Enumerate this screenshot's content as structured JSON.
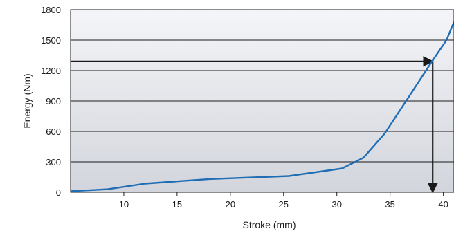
{
  "chart_data": {
    "type": "line",
    "title": "",
    "xlabel": "Stroke (mm)",
    "ylabel": "Energy (Nm)",
    "xlim": [
      5,
      41
    ],
    "ylim": [
      0,
      1800
    ],
    "x_ticks": [
      10,
      15,
      20,
      25,
      30,
      35,
      40
    ],
    "y_ticks": [
      0,
      300,
      600,
      900,
      1200,
      1500,
      1800
    ],
    "grid": "horizontal",
    "legend": "none",
    "series": [
      {
        "color": "#1f6db4",
        "points": [
          [
            5,
            10
          ],
          [
            8.5,
            30
          ],
          [
            12,
            85
          ],
          [
            18,
            130
          ],
          [
            25.5,
            160
          ],
          [
            30.5,
            235
          ],
          [
            32.5,
            340
          ],
          [
            34.5,
            580
          ],
          [
            36.5,
            900
          ],
          [
            39,
            1300
          ],
          [
            40.3,
            1500
          ],
          [
            41,
            1680
          ]
        ]
      }
    ],
    "annotations": [
      {
        "type": "arrow",
        "from": [
          5,
          1290
        ],
        "to": [
          39,
          1290
        ],
        "color": "#1a1a1a"
      },
      {
        "type": "arrow",
        "from": [
          39,
          1290
        ],
        "to": [
          39,
          0
        ],
        "color": "#1a1a1a"
      }
    ]
  }
}
